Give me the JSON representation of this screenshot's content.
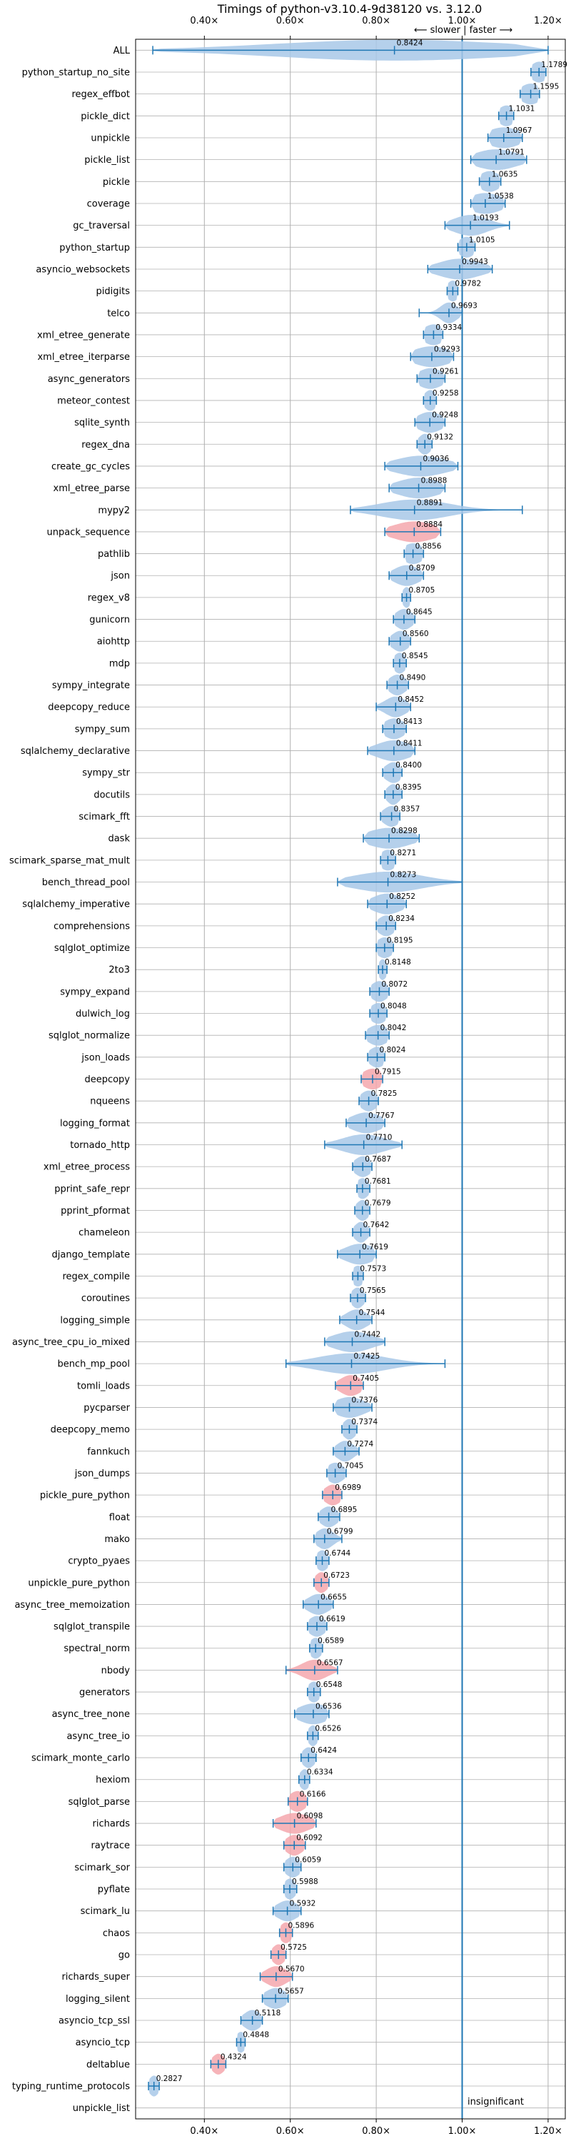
{
  "chart_data": {
    "type": "violin",
    "title": "Timings of python-v3.10.4-9d38120 vs. 3.12.0",
    "direction_label": "⟵ slower | faster ⟶",
    "note": "insignificant",
    "xlim": [
      0.24,
      1.24
    ],
    "x_ticks": [
      {
        "v": 0.4,
        "label": "0.40×"
      },
      {
        "v": 0.6,
        "label": "0.60×"
      },
      {
        "v": 0.8,
        "label": "0.80×"
      },
      {
        "v": 1.0,
        "label": "1.00×"
      },
      {
        "v": 1.2,
        "label": "1.20×"
      }
    ],
    "grid": true,
    "reference_line": 1.0,
    "colors": {
      "normal": "#a8c8e8",
      "highlight": "#f4a7ad",
      "line": "#1f77b4",
      "grid": "#b0b0b0"
    },
    "benchmarks": [
      {
        "name": "ALL",
        "value": "0.8424",
        "mean": 0.8424,
        "min": 0.28,
        "max": 1.2,
        "spread": 0.28,
        "highlight": false
      },
      {
        "name": "python_startup_no_site",
        "value": "1.1789",
        "mean": 1.1789,
        "min": 1.16,
        "max": 1.195,
        "spread": 0.02,
        "highlight": false
      },
      {
        "name": "regex_effbot",
        "value": "1.1595",
        "mean": 1.1595,
        "min": 1.135,
        "max": 1.18,
        "spread": 0.025,
        "highlight": false
      },
      {
        "name": "pickle_dict",
        "value": "1.1031",
        "mean": 1.1031,
        "min": 1.085,
        "max": 1.12,
        "spread": 0.02,
        "highlight": false
      },
      {
        "name": "unpickle",
        "value": "1.0967",
        "mean": 1.0967,
        "min": 1.06,
        "max": 1.14,
        "spread": 0.04,
        "highlight": false
      },
      {
        "name": "pickle_list",
        "value": "1.0791",
        "mean": 1.0791,
        "min": 1.02,
        "max": 1.15,
        "spread": 0.05,
        "highlight": false
      },
      {
        "name": "pickle",
        "value": "1.0635",
        "mean": 1.0635,
        "min": 1.04,
        "max": 1.09,
        "spread": 0.025,
        "highlight": false
      },
      {
        "name": "coverage",
        "value": "1.0538",
        "mean": 1.0538,
        "min": 1.02,
        "max": 1.1,
        "spread": 0.04,
        "highlight": false
      },
      {
        "name": "gc_traversal",
        "value": "1.0193",
        "mean": 1.0193,
        "min": 0.96,
        "max": 1.11,
        "spread": 0.04,
        "highlight": false
      },
      {
        "name": "python_startup",
        "value": "1.0105",
        "mean": 1.0105,
        "min": 0.99,
        "max": 1.03,
        "spread": 0.02,
        "highlight": false
      },
      {
        "name": "asyncio_websockets",
        "value": "0.9943",
        "mean": 0.9943,
        "min": 0.92,
        "max": 1.07,
        "spread": 0.05,
        "highlight": false
      },
      {
        "name": "pidigits",
        "value": "0.9782",
        "mean": 0.9782,
        "min": 0.965,
        "max": 0.99,
        "spread": 0.015,
        "highlight": false
      },
      {
        "name": "telco",
        "value": "0.9693",
        "mean": 0.9693,
        "min": 0.9,
        "max": 1.0,
        "spread": 0.02,
        "highlight": false
      },
      {
        "name": "xml_etree_generate",
        "value": "0.9334",
        "mean": 0.9334,
        "min": 0.91,
        "max": 0.955,
        "spread": 0.025,
        "highlight": false
      },
      {
        "name": "xml_etree_iterparse",
        "value": "0.9293",
        "mean": 0.9293,
        "min": 0.88,
        "max": 0.98,
        "spread": 0.045,
        "highlight": false
      },
      {
        "name": "async_generators",
        "value": "0.9261",
        "mean": 0.9261,
        "min": 0.895,
        "max": 0.96,
        "spread": 0.03,
        "highlight": false
      },
      {
        "name": "meteor_contest",
        "value": "0.9258",
        "mean": 0.9258,
        "min": 0.91,
        "max": 0.94,
        "spread": 0.015,
        "highlight": false
      },
      {
        "name": "sqlite_synth",
        "value": "0.9248",
        "mean": 0.9248,
        "min": 0.89,
        "max": 0.96,
        "spread": 0.03,
        "highlight": false
      },
      {
        "name": "regex_dna",
        "value": "0.9132",
        "mean": 0.9132,
        "min": 0.895,
        "max": 0.93,
        "spread": 0.015,
        "highlight": false
      },
      {
        "name": "create_gc_cycles",
        "value": "0.9036",
        "mean": 0.9036,
        "min": 0.82,
        "max": 0.99,
        "spread": 0.06,
        "highlight": false
      },
      {
        "name": "xml_etree_parse",
        "value": "0.8988",
        "mean": 0.8988,
        "min": 0.83,
        "max": 0.96,
        "spread": 0.05,
        "highlight": false
      },
      {
        "name": "mypy2",
        "value": "0.8891",
        "mean": 0.8891,
        "min": 0.74,
        "max": 1.14,
        "spread": 0.08,
        "highlight": false
      },
      {
        "name": "unpack_sequence",
        "value": "0.8884",
        "mean": 0.8884,
        "min": 0.82,
        "max": 0.95,
        "spread": 0.05,
        "highlight": true
      },
      {
        "name": "pathlib",
        "value": "0.8856",
        "mean": 0.8856,
        "min": 0.865,
        "max": 0.91,
        "spread": 0.025,
        "highlight": false
      },
      {
        "name": "json",
        "value": "0.8709",
        "mean": 0.8709,
        "min": 0.83,
        "max": 0.91,
        "spread": 0.03,
        "highlight": false
      },
      {
        "name": "regex_v8",
        "value": "0.8705",
        "mean": 0.8705,
        "min": 0.86,
        "max": 0.88,
        "spread": 0.01,
        "highlight": false
      },
      {
        "name": "gunicorn",
        "value": "0.8645",
        "mean": 0.8645,
        "min": 0.84,
        "max": 0.89,
        "spread": 0.02,
        "highlight": false
      },
      {
        "name": "aiohttp",
        "value": "0.8560",
        "mean": 0.856,
        "min": 0.83,
        "max": 0.88,
        "spread": 0.02,
        "highlight": false
      },
      {
        "name": "mdp",
        "value": "0.8545",
        "mean": 0.8545,
        "min": 0.84,
        "max": 0.87,
        "spread": 0.015,
        "highlight": false
      },
      {
        "name": "sympy_integrate",
        "value": "0.8490",
        "mean": 0.849,
        "min": 0.825,
        "max": 0.875,
        "spread": 0.02,
        "highlight": false
      },
      {
        "name": "deepcopy_reduce",
        "value": "0.8452",
        "mean": 0.8452,
        "min": 0.8,
        "max": 0.88,
        "spread": 0.025,
        "highlight": false
      },
      {
        "name": "sympy_sum",
        "value": "0.8413",
        "mean": 0.8413,
        "min": 0.815,
        "max": 0.87,
        "spread": 0.025,
        "highlight": false
      },
      {
        "name": "sqlalchemy_declarative",
        "value": "0.8411",
        "mean": 0.8411,
        "min": 0.78,
        "max": 0.89,
        "spread": 0.04,
        "highlight": false
      },
      {
        "name": "sympy_str",
        "value": "0.8400",
        "mean": 0.84,
        "min": 0.815,
        "max": 0.86,
        "spread": 0.02,
        "highlight": false
      },
      {
        "name": "docutils",
        "value": "0.8395",
        "mean": 0.8395,
        "min": 0.82,
        "max": 0.86,
        "spread": 0.015,
        "highlight": false
      },
      {
        "name": "scimark_fft",
        "value": "0.8357",
        "mean": 0.8357,
        "min": 0.81,
        "max": 0.855,
        "spread": 0.02,
        "highlight": false
      },
      {
        "name": "dask",
        "value": "0.8298",
        "mean": 0.8298,
        "min": 0.77,
        "max": 0.9,
        "spread": 0.05,
        "highlight": false
      },
      {
        "name": "scimark_sparse_mat_mult",
        "value": "0.8271",
        "mean": 0.8271,
        "min": 0.81,
        "max": 0.845,
        "spread": 0.02,
        "highlight": false
      },
      {
        "name": "bench_thread_pool",
        "value": "0.8273",
        "mean": 0.8273,
        "min": 0.71,
        "max": 1.0,
        "spread": 0.08,
        "highlight": false
      },
      {
        "name": "sqlalchemy_imperative",
        "value": "0.8252",
        "mean": 0.8252,
        "min": 0.78,
        "max": 0.87,
        "spread": 0.035,
        "highlight": false
      },
      {
        "name": "comprehensions",
        "value": "0.8234",
        "mean": 0.8234,
        "min": 0.8,
        "max": 0.845,
        "spread": 0.02,
        "highlight": false
      },
      {
        "name": "sqlglot_optimize",
        "value": "0.8195",
        "mean": 0.8195,
        "min": 0.8,
        "max": 0.84,
        "spread": 0.02,
        "highlight": false
      },
      {
        "name": "2to3",
        "value": "0.8148",
        "mean": 0.8148,
        "min": 0.805,
        "max": 0.825,
        "spread": 0.01,
        "highlight": false
      },
      {
        "name": "sympy_expand",
        "value": "0.8072",
        "mean": 0.8072,
        "min": 0.785,
        "max": 0.83,
        "spread": 0.02,
        "highlight": false
      },
      {
        "name": "dulwich_log",
        "value": "0.8048",
        "mean": 0.8048,
        "min": 0.785,
        "max": 0.825,
        "spread": 0.02,
        "highlight": false
      },
      {
        "name": "sqlglot_normalize",
        "value": "0.8042",
        "mean": 0.8042,
        "min": 0.775,
        "max": 0.83,
        "spread": 0.025,
        "highlight": false
      },
      {
        "name": "json_loads",
        "value": "0.8024",
        "mean": 0.8024,
        "min": 0.78,
        "max": 0.82,
        "spread": 0.02,
        "highlight": false
      },
      {
        "name": "deepcopy",
        "value": "0.7915",
        "mean": 0.7915,
        "min": 0.765,
        "max": 0.815,
        "spread": 0.025,
        "highlight": true
      },
      {
        "name": "nqueens",
        "value": "0.7825",
        "mean": 0.7825,
        "min": 0.76,
        "max": 0.805,
        "spread": 0.02,
        "highlight": false
      },
      {
        "name": "logging_format",
        "value": "0.7767",
        "mean": 0.7767,
        "min": 0.73,
        "max": 0.82,
        "spread": 0.035,
        "highlight": false
      },
      {
        "name": "tornado_http",
        "value": "0.7710",
        "mean": 0.771,
        "min": 0.68,
        "max": 0.86,
        "spread": 0.05,
        "highlight": false
      },
      {
        "name": "xml_etree_process",
        "value": "0.7687",
        "mean": 0.7687,
        "min": 0.745,
        "max": 0.79,
        "spread": 0.02,
        "highlight": false
      },
      {
        "name": "pprint_safe_repr",
        "value": "0.7681",
        "mean": 0.7681,
        "min": 0.755,
        "max": 0.785,
        "spread": 0.015,
        "highlight": false
      },
      {
        "name": "pprint_pformat",
        "value": "0.7679",
        "mean": 0.7679,
        "min": 0.75,
        "max": 0.785,
        "spread": 0.015,
        "highlight": false
      },
      {
        "name": "chameleon",
        "value": "0.7642",
        "mean": 0.7642,
        "min": 0.745,
        "max": 0.785,
        "spread": 0.015,
        "highlight": false
      },
      {
        "name": "django_template",
        "value": "0.7619",
        "mean": 0.7619,
        "min": 0.71,
        "max": 0.8,
        "spread": 0.035,
        "highlight": false
      },
      {
        "name": "regex_compile",
        "value": "0.7573",
        "mean": 0.7573,
        "min": 0.745,
        "max": 0.77,
        "spread": 0.015,
        "highlight": false
      },
      {
        "name": "coroutines",
        "value": "0.7565",
        "mean": 0.7565,
        "min": 0.74,
        "max": 0.775,
        "spread": 0.015,
        "highlight": false
      },
      {
        "name": "logging_simple",
        "value": "0.7544",
        "mean": 0.7544,
        "min": 0.715,
        "max": 0.79,
        "spread": 0.025,
        "highlight": false
      },
      {
        "name": "async_tree_cpu_io_mixed",
        "value": "0.7442",
        "mean": 0.7442,
        "min": 0.68,
        "max": 0.82,
        "spread": 0.045,
        "highlight": false
      },
      {
        "name": "bench_mp_pool",
        "value": "0.7425",
        "mean": 0.7425,
        "min": 0.59,
        "max": 0.96,
        "spread": 0.08,
        "highlight": false
      },
      {
        "name": "tomli_loads",
        "value": "0.7405",
        "mean": 0.7405,
        "min": 0.705,
        "max": 0.77,
        "spread": 0.025,
        "highlight": true
      },
      {
        "name": "pycparser",
        "value": "0.7376",
        "mean": 0.7376,
        "min": 0.7,
        "max": 0.79,
        "spread": 0.035,
        "highlight": false
      },
      {
        "name": "deepcopy_memo",
        "value": "0.7374",
        "mean": 0.7374,
        "min": 0.72,
        "max": 0.755,
        "spread": 0.015,
        "highlight": false
      },
      {
        "name": "fannkuch",
        "value": "0.7274",
        "mean": 0.7274,
        "min": 0.7,
        "max": 0.76,
        "spread": 0.02,
        "highlight": false
      },
      {
        "name": "json_dumps",
        "value": "0.7045",
        "mean": 0.7045,
        "min": 0.685,
        "max": 0.73,
        "spread": 0.02,
        "highlight": false
      },
      {
        "name": "pickle_pure_python",
        "value": "0.6989",
        "mean": 0.6989,
        "min": 0.675,
        "max": 0.72,
        "spread": 0.02,
        "highlight": true
      },
      {
        "name": "float",
        "value": "0.6895",
        "mean": 0.6895,
        "min": 0.665,
        "max": 0.715,
        "spread": 0.02,
        "highlight": false
      },
      {
        "name": "mako",
        "value": "0.6799",
        "mean": 0.6799,
        "min": 0.655,
        "max": 0.72,
        "spread": 0.02,
        "highlight": false
      },
      {
        "name": "crypto_pyaes",
        "value": "0.6744",
        "mean": 0.6744,
        "min": 0.66,
        "max": 0.69,
        "spread": 0.015,
        "highlight": false
      },
      {
        "name": "unpickle_pure_python",
        "value": "0.6723",
        "mean": 0.6723,
        "min": 0.655,
        "max": 0.69,
        "spread": 0.015,
        "highlight": true
      },
      {
        "name": "async_tree_memoization",
        "value": "0.6655",
        "mean": 0.6655,
        "min": 0.63,
        "max": 0.7,
        "spread": 0.025,
        "highlight": false
      },
      {
        "name": "sqlglot_transpile",
        "value": "0.6619",
        "mean": 0.6619,
        "min": 0.64,
        "max": 0.685,
        "spread": 0.02,
        "highlight": false
      },
      {
        "name": "spectral_norm",
        "value": "0.6589",
        "mean": 0.6589,
        "min": 0.645,
        "max": 0.675,
        "spread": 0.015,
        "highlight": false
      },
      {
        "name": "nbody",
        "value": "0.6567",
        "mean": 0.6567,
        "min": 0.59,
        "max": 0.71,
        "spread": 0.03,
        "highlight": true
      },
      {
        "name": "generators",
        "value": "0.6548",
        "mean": 0.6548,
        "min": 0.64,
        "max": 0.67,
        "spread": 0.015,
        "highlight": false
      },
      {
        "name": "async_tree_none",
        "value": "0.6536",
        "mean": 0.6536,
        "min": 0.61,
        "max": 0.69,
        "spread": 0.035,
        "highlight": false
      },
      {
        "name": "async_tree_io",
        "value": "0.6526",
        "mean": 0.6526,
        "min": 0.64,
        "max": 0.665,
        "spread": 0.012,
        "highlight": false
      },
      {
        "name": "scimark_monte_carlo",
        "value": "0.6424",
        "mean": 0.6424,
        "min": 0.625,
        "max": 0.66,
        "spread": 0.015,
        "highlight": false
      },
      {
        "name": "hexiom",
        "value": "0.6334",
        "mean": 0.6334,
        "min": 0.62,
        "max": 0.645,
        "spread": 0.012,
        "highlight": false
      },
      {
        "name": "sqlglot_parse",
        "value": "0.6166",
        "mean": 0.6166,
        "min": 0.595,
        "max": 0.64,
        "spread": 0.02,
        "highlight": true
      },
      {
        "name": "richards",
        "value": "0.6098",
        "mean": 0.6098,
        "min": 0.56,
        "max": 0.66,
        "spread": 0.035,
        "highlight": true
      },
      {
        "name": "raytrace",
        "value": "0.6092",
        "mean": 0.6092,
        "min": 0.585,
        "max": 0.635,
        "spread": 0.02,
        "highlight": true
      },
      {
        "name": "scimark_sor",
        "value": "0.6059",
        "mean": 0.6059,
        "min": 0.585,
        "max": 0.625,
        "spread": 0.018,
        "highlight": false
      },
      {
        "name": "pyflate",
        "value": "0.5988",
        "mean": 0.5988,
        "min": 0.585,
        "max": 0.615,
        "spread": 0.014,
        "highlight": false
      },
      {
        "name": "scimark_lu",
        "value": "0.5932",
        "mean": 0.5932,
        "min": 0.56,
        "max": 0.625,
        "spread": 0.025,
        "highlight": false
      },
      {
        "name": "chaos",
        "value": "0.5896",
        "mean": 0.5896,
        "min": 0.575,
        "max": 0.605,
        "spread": 0.014,
        "highlight": true
      },
      {
        "name": "go",
        "value": "0.5725",
        "mean": 0.5725,
        "min": 0.555,
        "max": 0.59,
        "spread": 0.015,
        "highlight": true
      },
      {
        "name": "richards_super",
        "value": "0.5670",
        "mean": 0.567,
        "min": 0.53,
        "max": 0.605,
        "spread": 0.025,
        "highlight": true
      },
      {
        "name": "logging_silent",
        "value": "0.5657",
        "mean": 0.5657,
        "min": 0.535,
        "max": 0.595,
        "spread": 0.025,
        "highlight": false
      },
      {
        "name": "asyncio_tcp_ssl",
        "value": "0.5118",
        "mean": 0.5118,
        "min": 0.485,
        "max": 0.535,
        "spread": 0.02,
        "highlight": false
      },
      {
        "name": "asyncio_tcp",
        "value": "0.4848",
        "mean": 0.4848,
        "min": 0.475,
        "max": 0.495,
        "spread": 0.012,
        "highlight": false
      },
      {
        "name": "deltablue",
        "value": "0.4324",
        "mean": 0.4324,
        "min": 0.415,
        "max": 0.45,
        "spread": 0.015,
        "highlight": true
      },
      {
        "name": "typing_runtime_protocols",
        "value": "0.2827",
        "mean": 0.2827,
        "min": 0.27,
        "max": 0.295,
        "spread": 0.012,
        "highlight": false
      },
      {
        "name": "unpickle_list",
        "value": "",
        "mean": null,
        "min": null,
        "max": null,
        "spread": 0,
        "highlight": false
      }
    ]
  }
}
